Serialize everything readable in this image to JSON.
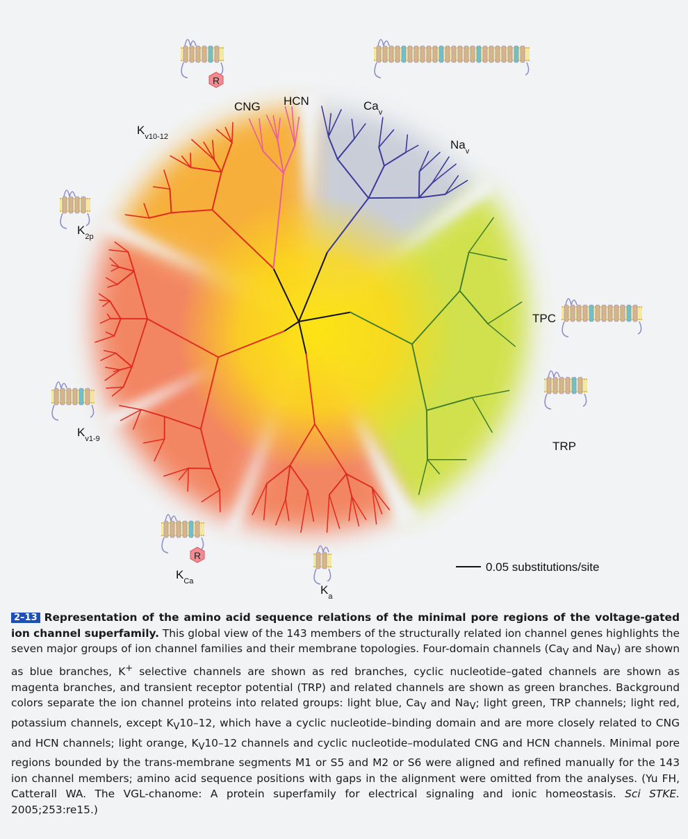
{
  "figure": {
    "groups": [
      {
        "id": "cng",
        "label": "CNG",
        "sub": ""
      },
      {
        "id": "hcn",
        "label": "HCN",
        "sub": ""
      },
      {
        "id": "cav",
        "label": "Ca",
        "sub": "v"
      },
      {
        "id": "nav",
        "label": "Na",
        "sub": "v"
      },
      {
        "id": "kv1012",
        "label": "K",
        "sub": "v10-12"
      },
      {
        "id": "k2p",
        "label": "K",
        "sub": "2p"
      },
      {
        "id": "tpc",
        "label": "TPC",
        "sub": ""
      },
      {
        "id": "trp",
        "label": "TRP",
        "sub": ""
      },
      {
        "id": "kv19",
        "label": "K",
        "sub": "v1-9"
      },
      {
        "id": "kca",
        "label": "K",
        "sub": "Ca"
      },
      {
        "id": "ka",
        "label": "K",
        "sub": "a"
      }
    ],
    "r_domain_label": "R",
    "scale_bar_label": "0.05 substitutions/site",
    "colors": {
      "blue_branches": "#3b3a9a",
      "red_branches": "#e02a1e",
      "magenta_branches": "#e8609a",
      "green_branches": "#3f7d2c",
      "bg_light_blue": "#c5c9d6",
      "bg_light_green": "#cde03a",
      "bg_light_red": "#f37a52",
      "bg_light_orange": "#f7a825",
      "center_yellow": "#fce414"
    }
  },
  "caption": {
    "fig_number": "2–13",
    "title": "Representation of the amino acid sequence relations of the minimal pore regions of the voltage-gated ion channel superfamily.",
    "seg1": " This global view of the 143 members of the structurally related ion channel genes highlights the seven major groups of ion channel families and their membrane topologies. Four-domain channels (Ca",
    "v1": "V",
    "seg2": " and Na",
    "v2": "V",
    "seg3": ") are shown as blue branches, K",
    "plus": "+",
    "seg4": " selective channels are shown as red branches, cyclic nucleotide–gated channels are shown as magenta branches, and transient receptor potential (TRP) and related channels are shown as green branches. Background colors separate the ion channel proteins into related groups: light blue, Ca",
    "v3": "V",
    "seg5": " and Na",
    "v4": "V",
    "seg6": "; light green, TRP channels; light red, potassium channels, except K",
    "v5": "V",
    "seg7": "10–12, which have a cyclic nucleotide–binding domain and are more closely related to CNG and HCN channels; light orange, K",
    "v6": "V",
    "seg8": "10–12 channels and cyclic nucleotide–modulated CNG and HCN channels. Minimal pore regions bounded by the trans-membrane segments M1 or S5 and M2 or S6 were aligned and refined manually for the 143 ion channel members; amino acid sequence positions with gaps in the alignment were omitted from the analyses. (Yu FH, Catterall WA. The VGL-chanome: A protein superfamily for electrical signaling and ionic homeostasis. ",
    "journal": "Sci STKE.",
    "seg9": " 2005;253:re15.)"
  }
}
